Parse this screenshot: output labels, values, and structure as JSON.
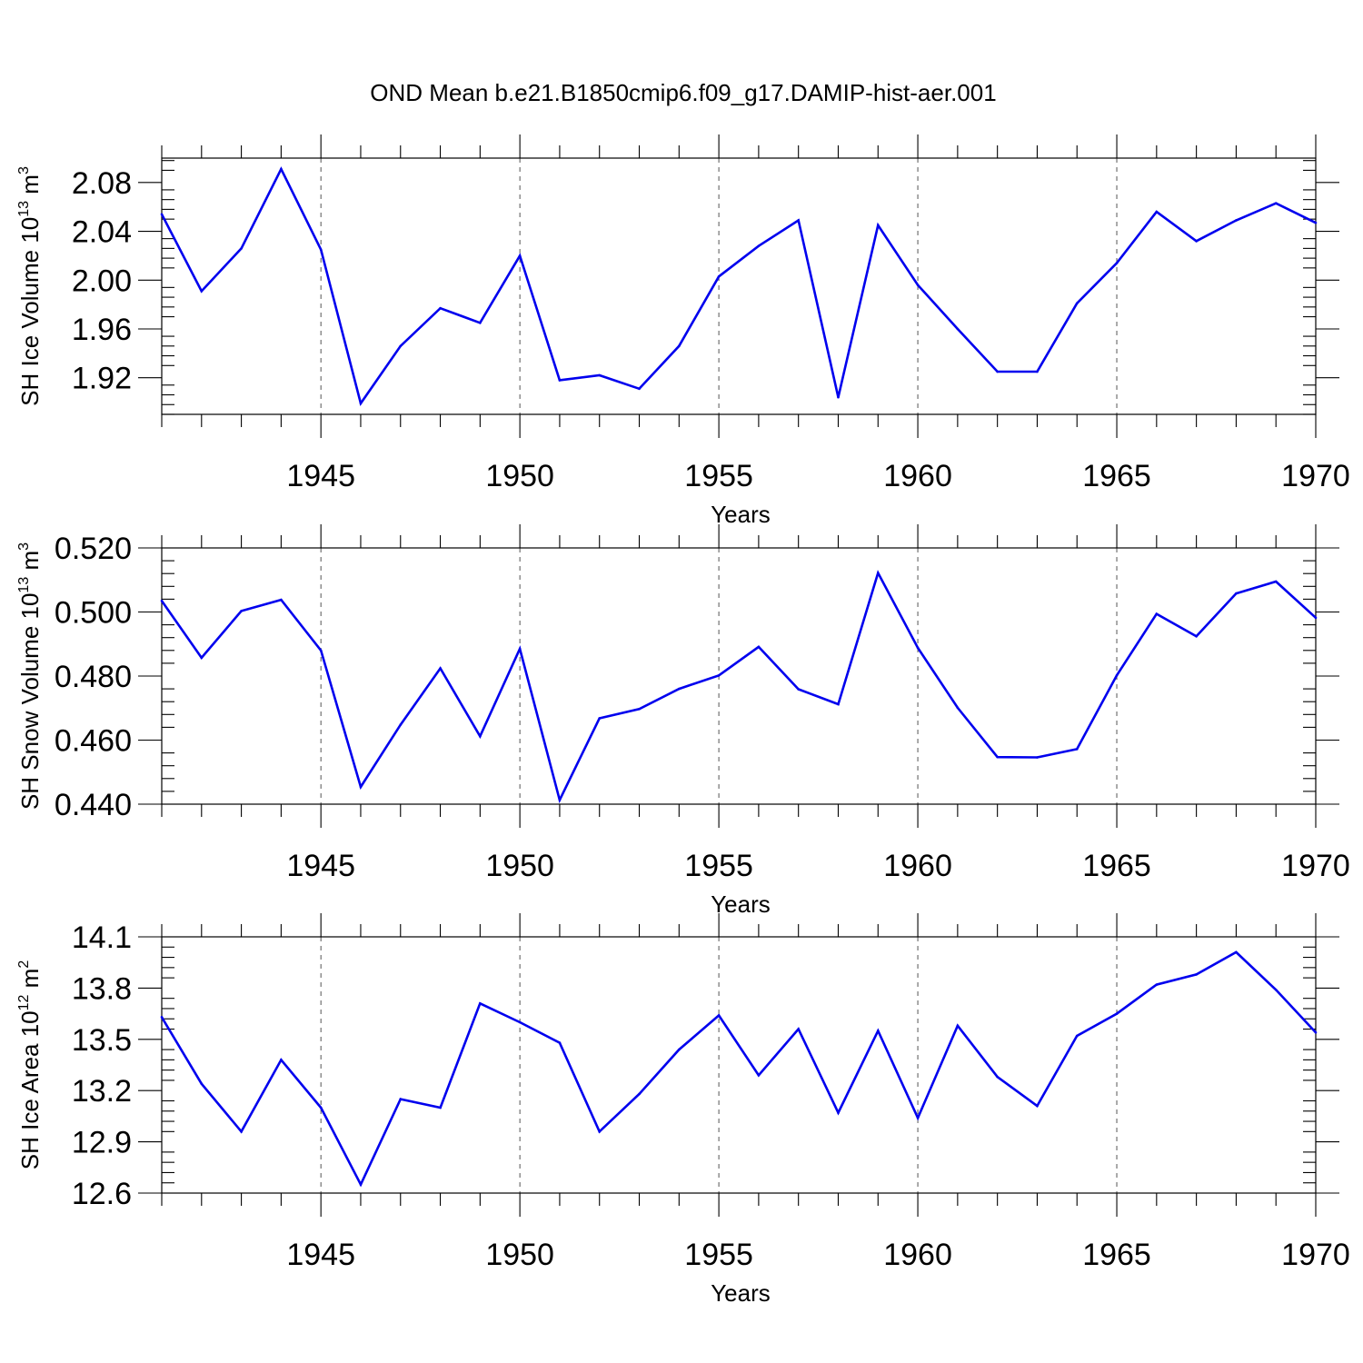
{
  "title": "OND Mean b.e21.B1850cmip6.f09_g17.DAMIP-hist-aer.001",
  "colors": {
    "line": "#0000ee",
    "axis": "#000000",
    "grid": "#555555"
  },
  "chart_data": [
    {
      "type": "line",
      "ylabel_main": "SH Ice Volume 10",
      "ylabel_exp": "13",
      "ylabel_unit": " m",
      "ylabel_unit_exp": "3",
      "xlabel": "Years",
      "xlim": [
        1941,
        1970
      ],
      "ylim": [
        1.89,
        2.1
      ],
      "ymajor": [
        1.92,
        1.96,
        2.0,
        2.04,
        2.08
      ],
      "ymajor_labels": [
        "1.92",
        "1.96",
        "2.00",
        "2.04",
        "2.08"
      ],
      "yminor_step": 0.008,
      "xmajor": [
        1945,
        1950,
        1955,
        1960,
        1965,
        1970
      ],
      "xmajor_labels": [
        "1945",
        "1950",
        "1955",
        "1960",
        "1965",
        "1970"
      ],
      "x": [
        1941,
        1942,
        1943,
        1944,
        1945,
        1946,
        1947,
        1948,
        1949,
        1950,
        1951,
        1952,
        1953,
        1954,
        1955,
        1956,
        1957,
        1958,
        1959,
        1960,
        1961,
        1962,
        1963,
        1964,
        1965,
        1966,
        1967,
        1968,
        1969,
        1970
      ],
      "values": [
        2.054,
        1.991,
        2.026,
        2.091,
        2.025,
        1.899,
        1.946,
        1.977,
        1.965,
        2.02,
        1.918,
        1.922,
        1.911,
        1.946,
        2.003,
        2.028,
        2.049,
        1.904,
        2.045,
        1.996,
        1.96,
        1.925,
        1.925,
        1.981,
        2.014,
        2.056,
        2.032,
        2.049,
        2.063,
        2.047
      ]
    },
    {
      "type": "line",
      "ylabel_main": "SH Snow Volume 10",
      "ylabel_exp": "13",
      "ylabel_unit": " m",
      "ylabel_unit_exp": "3",
      "xlabel": "Years",
      "xlim": [
        1941,
        1970
      ],
      "ylim": [
        0.44,
        0.52
      ],
      "ymajor": [
        0.44,
        0.46,
        0.48,
        0.5,
        0.52
      ],
      "ymajor_labels": [
        "0.440",
        "0.460",
        "0.480",
        "0.500",
        "0.520"
      ],
      "yminor_step": 0.004,
      "xmajor": [
        1945,
        1950,
        1955,
        1960,
        1965,
        1970
      ],
      "xmajor_labels": [
        "1945",
        "1950",
        "1955",
        "1960",
        "1965",
        "1970"
      ],
      "x": [
        1941,
        1942,
        1943,
        1944,
        1945,
        1946,
        1947,
        1948,
        1949,
        1950,
        1951,
        1952,
        1953,
        1954,
        1955,
        1956,
        1957,
        1958,
        1959,
        1960,
        1961,
        1962,
        1963,
        1964,
        1965,
        1966,
        1967,
        1968,
        1969,
        1970
      ],
      "values": [
        0.5035,
        0.4857,
        0.5003,
        0.5038,
        0.488,
        0.4454,
        0.4648,
        0.4824,
        0.4612,
        0.4885,
        0.4413,
        0.4668,
        0.4697,
        0.476,
        0.4802,
        0.4891,
        0.4759,
        0.4712,
        0.5122,
        0.4888,
        0.4701,
        0.4547,
        0.4546,
        0.4572,
        0.4802,
        0.4994,
        0.4924,
        0.5058,
        0.5095,
        0.4982
      ]
    },
    {
      "type": "line",
      "ylabel_main": "SH Ice Area 10",
      "ylabel_exp": "12",
      "ylabel_unit": " m",
      "ylabel_unit_exp": "2",
      "xlabel": "Years",
      "xlim": [
        1941,
        1970
      ],
      "ylim": [
        12.6,
        14.1
      ],
      "ymajor": [
        12.6,
        12.9,
        13.2,
        13.5,
        13.8,
        14.1
      ],
      "ymajor_labels": [
        "12.6",
        "12.9",
        "13.2",
        "13.5",
        "13.8",
        "14.1"
      ],
      "yminor_step": 0.06,
      "xmajor": [
        1945,
        1950,
        1955,
        1960,
        1965,
        1970
      ],
      "xmajor_labels": [
        "1945",
        "1950",
        "1955",
        "1960",
        "1965",
        "1970"
      ],
      "x": [
        1941,
        1942,
        1943,
        1944,
        1945,
        1946,
        1947,
        1948,
        1949,
        1950,
        1951,
        1952,
        1953,
        1954,
        1955,
        1956,
        1957,
        1958,
        1959,
        1960,
        1961,
        1962,
        1963,
        1964,
        1965,
        1966,
        1967,
        1968,
        1969,
        1970
      ],
      "values": [
        13.63,
        13.24,
        12.96,
        13.38,
        13.1,
        12.65,
        13.15,
        13.1,
        13.71,
        13.6,
        13.48,
        12.96,
        13.18,
        13.44,
        13.64,
        13.29,
        13.56,
        13.07,
        13.55,
        13.04,
        13.58,
        13.28,
        13.11,
        13.52,
        13.65,
        13.82,
        13.88,
        14.01,
        13.79,
        13.54
      ]
    }
  ]
}
